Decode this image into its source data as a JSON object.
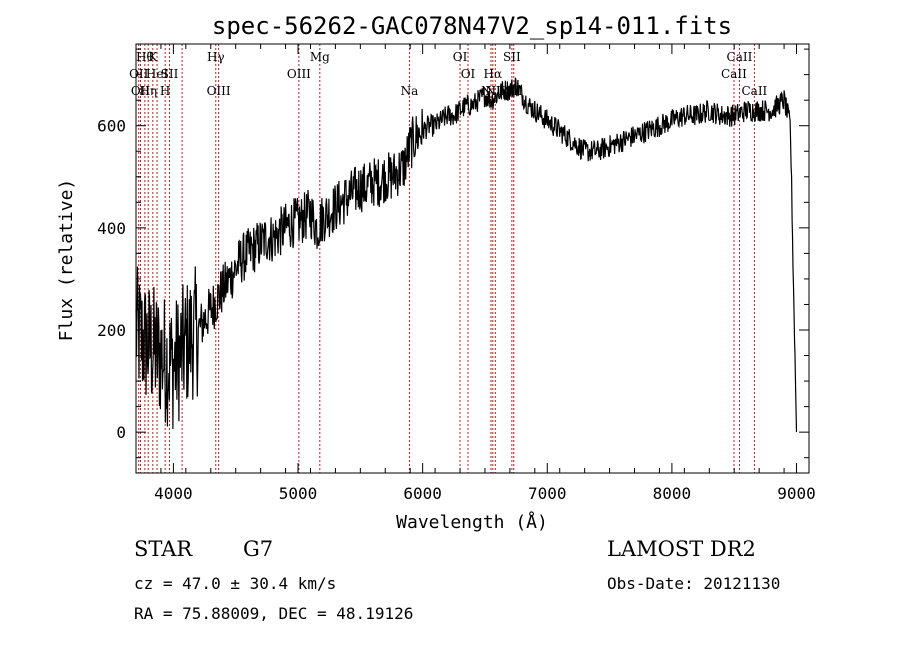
{
  "chart_data": {
    "type": "line",
    "title": "spec-56262-GAC078N47V2_sp14-011.fits",
    "xlabel": "Wavelength (Å)",
    "ylabel": "Flux (relative)",
    "xlim": [
      3700,
      9100
    ],
    "ylim": [
      -80,
      760
    ],
    "xticks": [
      4000,
      5000,
      6000,
      7000,
      8000,
      9000
    ],
    "yticks": [
      0,
      200,
      400,
      600
    ],
    "grid": false,
    "line_color": "#000000",
    "marker_color": "#b22222",
    "series": [
      {
        "x": [
          3700,
          3750,
          3800,
          3850,
          3900,
          3950,
          4000,
          4050,
          4100,
          4150,
          4200,
          4250,
          4300,
          4350,
          4400,
          4450,
          4500,
          4550,
          4600,
          4650,
          4700,
          4750,
          4800,
          4850,
          4900,
          4950,
          5000,
          5050,
          5100,
          5150,
          5200,
          5250,
          5300,
          5350,
          5400,
          5450,
          5500,
          5550,
          5600,
          5650,
          5700,
          5750,
          5800,
          5850,
          5900,
          5950,
          6000,
          6050,
          6100,
          6150,
          6200,
          6250,
          6300,
          6350,
          6400,
          6450,
          6500,
          6550,
          6600,
          6650,
          6700,
          6750,
          6800,
          6850,
          6900,
          6950,
          7000,
          7100,
          7200,
          7300,
          7400,
          7500,
          7600,
          7700,
          7800,
          7900,
          8000,
          8100,
          8200,
          8300,
          8400,
          8500,
          8600,
          8700,
          8800,
          8850,
          8900,
          8950,
          9000
        ],
        "y": [
          200,
          180,
          170,
          160,
          150,
          140,
          130,
          150,
          170,
          190,
          200,
          220,
          240,
          260,
          280,
          300,
          320,
          340,
          350,
          360,
          370,
          380,
          380,
          390,
          400,
          410,
          410,
          420,
          430,
          400,
          420,
          430,
          440,
          450,
          460,
          470,
          480,
          480,
          490,
          490,
          500,
          500,
          510,
          520,
          560,
          580,
          590,
          600,
          600,
          610,
          620,
          620,
          630,
          640,
          640,
          650,
          660,
          650,
          660,
          670,
          670,
          680,
          660,
          640,
          630,
          620,
          610,
          590,
          570,
          550,
          550,
          560,
          570,
          580,
          590,
          600,
          610,
          620,
          620,
          630,
          620,
          620,
          630,
          630,
          630,
          640,
          650,
          600,
          0
        ]
      }
    ],
    "lines": [
      {
        "x": 3722,
        "label": "OII",
        "row": 2
      },
      {
        "x": 3736,
        "label": "OII",
        "row": 3
      },
      {
        "x": 3771,
        "label": "Hθ",
        "row": 1
      },
      {
        "x": 3798,
        "label": "Hη",
        "row": 3
      },
      {
        "x": 3835,
        "label": "K",
        "row": 1
      },
      {
        "x": 3869,
        "label": "HeI",
        "row": 2
      },
      {
        "x": 3934,
        "label": "H",
        "row": 3
      },
      {
        "x": 3969,
        "label": "SII",
        "row": 2
      },
      {
        "x": 4070,
        "label": "",
        "row": 0
      },
      {
        "x": 4340,
        "label": "Hγ",
        "row": 1
      },
      {
        "x": 4363,
        "label": "OIII",
        "row": 3
      },
      {
        "x": 5007,
        "label": "OIII",
        "row": 2
      },
      {
        "x": 5175,
        "label": "Mg",
        "row": 1
      },
      {
        "x": 5894,
        "label": "Na",
        "row": 3
      },
      {
        "x": 6300,
        "label": "OI",
        "row": 1
      },
      {
        "x": 6364,
        "label": "OI",
        "row": 2
      },
      {
        "x": 6548,
        "label": "NII",
        "row": 3
      },
      {
        "x": 6563,
        "label": "Hα",
        "row": 2
      },
      {
        "x": 6583,
        "label": "NII",
        "row": 3
      },
      {
        "x": 6716,
        "label": "SII",
        "row": 1
      },
      {
        "x": 6731,
        "label": "SII",
        "row": 3
      },
      {
        "x": 8498,
        "label": "CaII",
        "row": 2
      },
      {
        "x": 8542,
        "label": "CaII",
        "row": 1
      },
      {
        "x": 8662,
        "label": "CaII",
        "row": 3
      }
    ]
  },
  "footer": {
    "object_type": "STAR",
    "subclass": "G7",
    "survey": "LAMOST DR2",
    "cz": "cz = 47.0 ± 30.4 km/s",
    "obs_date": "Obs-Date: 20121130",
    "coords": "RA =  75.88009, DEC =  48.19126"
  }
}
